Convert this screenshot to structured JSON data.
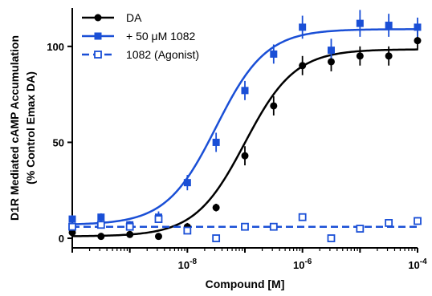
{
  "chart_data": {
    "type": "scatter",
    "xlabel": "Compound [M]",
    "ylabel_lines": [
      "D1R Mediated cAMP Accumulation",
      "(% Control Emax DA)"
    ],
    "x_scale": "log10",
    "xlim": [
      1e-10,
      0.0001
    ],
    "ylim": [
      -5,
      120
    ],
    "y_ticks": [
      0,
      50,
      100
    ],
    "y_tick_labels": [
      "0",
      "50",
      "100"
    ],
    "x_ticks": [
      1e-08,
      1e-06,
      0.0001
    ],
    "x_tick_labels": [
      {
        "base": "10",
        "exp": "-8"
      },
      {
        "base": "10",
        "exp": "-6"
      },
      {
        "base": "10",
        "exp": "-4"
      }
    ],
    "legend_placement": "top-left",
    "series": [
      {
        "name": "DA",
        "color": "#000000",
        "marker": "circle-filled",
        "line": "solid",
        "x": [
          1e-10,
          3.16e-10,
          1e-09,
          3.16e-09,
          1e-08,
          3.16e-08,
          1e-07,
          3.16e-07,
          1e-06,
          3.16e-06,
          1e-05,
          3.16e-05,
          0.0001
        ],
        "y": [
          3,
          1,
          2,
          1,
          6,
          16,
          43,
          69,
          90,
          92,
          95,
          95,
          103
        ],
        "err": [
          1,
          1,
          1,
          1,
          2,
          2,
          5,
          5,
          5,
          5,
          5,
          5,
          5
        ],
        "fit": {
          "bottom": 1,
          "top": 98.5,
          "log_ec50": -7.0,
          "hill": 1.0
        }
      },
      {
        "name": "+ 50 μM 1082",
        "color": "#1a4fd6",
        "marker": "square-filled",
        "line": "solid",
        "x": [
          1e-10,
          3.16e-10,
          1e-09,
          3.16e-09,
          1e-08,
          3.16e-08,
          1e-07,
          3.16e-07,
          1e-06,
          3.16e-06,
          1e-05,
          3.16e-05,
          0.0001
        ],
        "y": [
          10,
          11,
          7,
          11,
          29,
          50,
          77,
          96,
          110,
          98,
          112,
          111,
          110
        ],
        "err": [
          2,
          2,
          2,
          3,
          4,
          5,
          5,
          5,
          6,
          6,
          7,
          6,
          5
        ],
        "fit": {
          "bottom": 7,
          "top": 109,
          "log_ec50": -7.5,
          "hill": 1.0
        }
      },
      {
        "name": "1082 (Agonist)",
        "color": "#1a4fd6",
        "marker": "square-open",
        "line": "dashed",
        "x": [
          1e-10,
          3.16e-10,
          1e-09,
          3.16e-09,
          1e-08,
          3.16e-08,
          1e-07,
          3.16e-07,
          1e-06,
          3.16e-06,
          1e-05,
          3.16e-05,
          0.0001
        ],
        "y": [
          6,
          7,
          6,
          10,
          4,
          0,
          6,
          6,
          11,
          0,
          5,
          8,
          9
        ],
        "err": [
          0,
          0,
          0,
          0,
          0,
          0,
          0,
          0,
          0,
          0,
          0,
          2,
          2
        ],
        "fit": {
          "constant": 6
        }
      }
    ]
  }
}
